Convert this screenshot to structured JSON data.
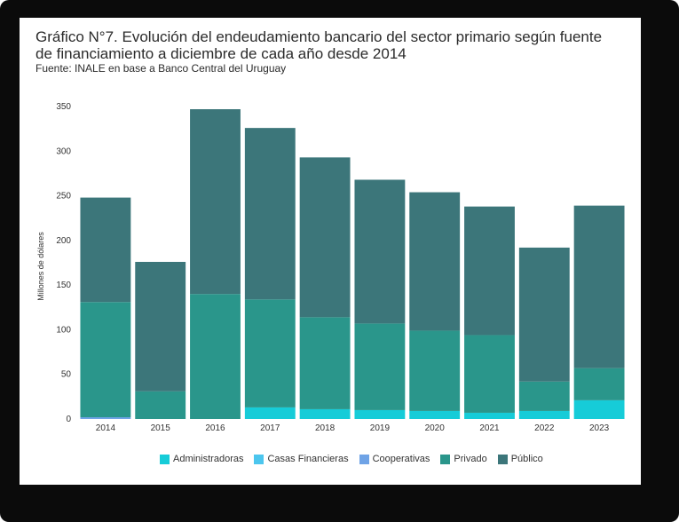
{
  "title": "Gráfico N°7.  Evolución del endeudamiento bancario del sector primario según fuente de financiamiento a diciembre de cada año desde 2014",
  "source": "Fuente: INALE en base a Banco Central del Uruguay",
  "chart_data": {
    "type": "bar",
    "stacked": true,
    "categories": [
      "2014",
      "2015",
      "2016",
      "2017",
      "2018",
      "2019",
      "2020",
      "2021",
      "2022",
      "2023"
    ],
    "series": [
      {
        "name": "Administradoras",
        "color": "#16ccd8",
        "values": [
          0,
          0,
          0,
          13,
          11,
          10,
          9,
          7,
          9,
          21
        ]
      },
      {
        "name": "Casas Financieras",
        "color": "#4cc6ee",
        "values": [
          0,
          0,
          0,
          0,
          0,
          0,
          0,
          0,
          0,
          0
        ]
      },
      {
        "name": "Cooperativas",
        "color": "#6fa3e6",
        "values": [
          2,
          0,
          0,
          0,
          0,
          0,
          0,
          0,
          0,
          0
        ]
      },
      {
        "name": "Privado",
        "color": "#2a968b",
        "values": [
          129,
          31,
          140,
          121,
          103,
          97,
          90,
          87,
          33,
          36
        ]
      },
      {
        "name": "Público",
        "color": "#3c767a",
        "values": [
          117,
          145,
          207,
          192,
          179,
          161,
          155,
          144,
          150,
          182
        ]
      }
    ],
    "ylabel": "Millones de dólares",
    "xlabel": "",
    "yticks": [
      0,
      50,
      100,
      150,
      200,
      250,
      300,
      350
    ],
    "ylim": [
      0,
      350
    ],
    "legend_position": "bottom"
  }
}
